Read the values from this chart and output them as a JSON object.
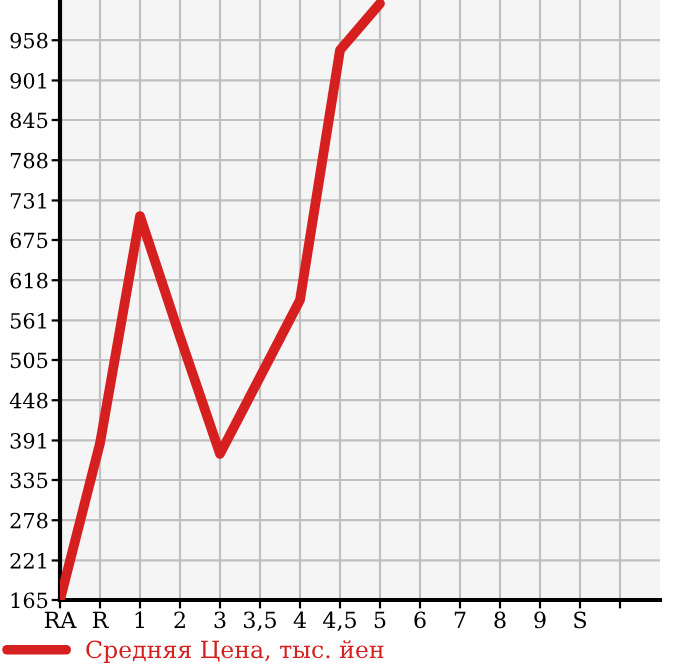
{
  "chart_data": {
    "type": "line",
    "categories": [
      "RA",
      "R",
      "1",
      "2",
      "3",
      "3,5",
      "4",
      "4,5",
      "5",
      "6",
      "7",
      "8",
      "9",
      "S",
      null
    ],
    "series": [
      {
        "name": "Средняя Цена, тыс. йен",
        "color": "#d61f1f",
        "values": [
          165,
          387,
          709,
          538,
          372,
          481,
          590,
          944,
          1010,
          null,
          null,
          null,
          null,
          null,
          null
        ]
      }
    ],
    "ylim": [
      165,
      1015
    ],
    "yticks": [
      165,
      221,
      278,
      335,
      391,
      448,
      505,
      561,
      618,
      675,
      731,
      788,
      845,
      901,
      958
    ],
    "grid": true,
    "legend": "bottom left",
    "marker": "none",
    "line_style": "solid"
  }
}
